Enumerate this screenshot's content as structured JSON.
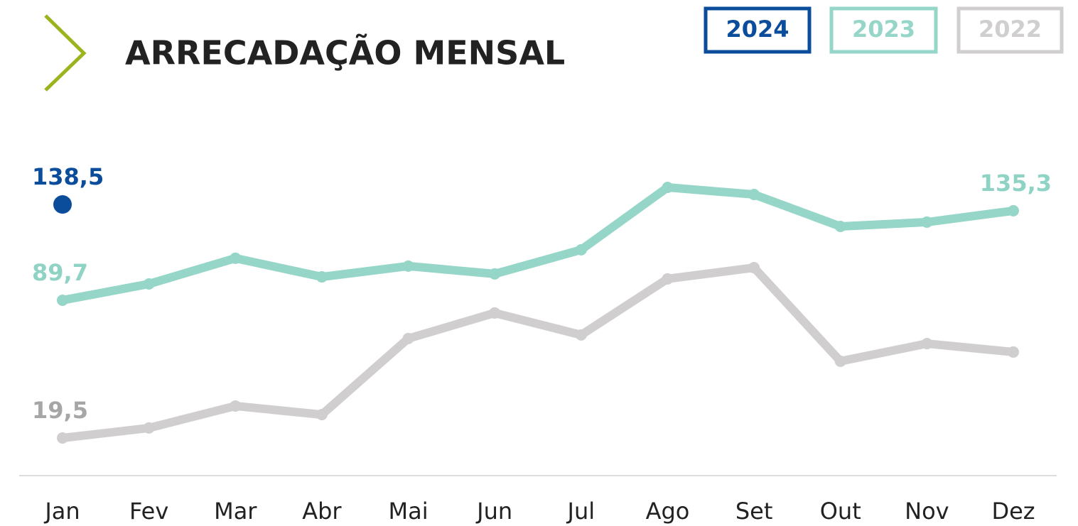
{
  "chart_data": {
    "type": "line",
    "title": "ARRECADAÇÃO MENSAL",
    "categories": [
      "Jan",
      "Fev",
      "Mar",
      "Abr",
      "Mai",
      "Jun",
      "Jul",
      "Ago",
      "Set",
      "Out",
      "Nov",
      "Dez"
    ],
    "series": [
      {
        "name": "2024",
        "color": "#0b4d9b",
        "values": [
          138.5,
          null,
          null,
          null,
          null,
          null,
          null,
          null,
          null,
          null,
          null,
          null
        ],
        "value_labels": [
          "138,5",
          null,
          null,
          null,
          null,
          null,
          null,
          null,
          null,
          null,
          null,
          null
        ]
      },
      {
        "name": "2023",
        "color": "#96d6c8",
        "values": [
          89.7,
          98.0,
          111.1,
          101.6,
          107.1,
          103.1,
          115.4,
          147.2,
          143.6,
          127.3,
          129.5,
          135.3
        ],
        "value_labels": [
          "89,7",
          null,
          null,
          null,
          null,
          null,
          null,
          null,
          null,
          null,
          null,
          "135,3"
        ]
      },
      {
        "name": "2022",
        "color": "#d0cece",
        "values": [
          19.5,
          24.6,
          35.8,
          31.4,
          70.2,
          83.2,
          72.0,
          100.6,
          106.3,
          58.6,
          67.6,
          63.3
        ],
        "value_labels": [
          "19,5",
          null,
          null,
          null,
          null,
          null,
          null,
          null,
          null,
          null,
          null,
          null
        ]
      }
    ]
  }
}
